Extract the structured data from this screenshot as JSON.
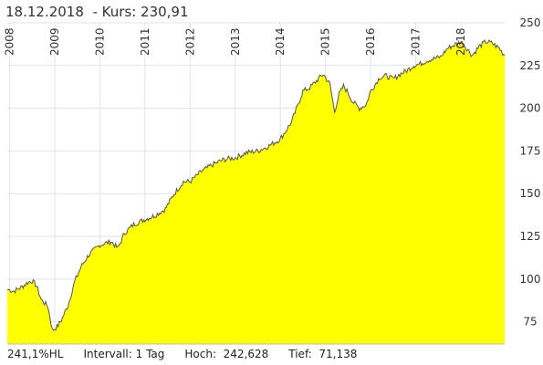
{
  "header": {
    "date": "18.12.2018",
    "price_label": "- Kurs:",
    "price": "230,91"
  },
  "footer": {
    "performance": "241,1%HL",
    "interval": "Intervall: 1 Tag",
    "high": "Hoch:  242,628",
    "low": "Tief:  71,138"
  },
  "chart_data": {
    "type": "area",
    "title": "",
    "xlabel": "",
    "ylabel": "",
    "x_ticks": [
      "2008",
      "2009",
      "2010",
      "2011",
      "2012",
      "2013",
      "2014",
      "2015",
      "2016",
      "2017",
      "2018"
    ],
    "y_ticks": [
      75,
      100,
      125,
      150,
      175,
      200,
      225,
      250
    ],
    "xlim": [
      2007.95,
      2018.97
    ],
    "ylim": [
      62,
      250
    ],
    "grid": true,
    "fill_color": "#ffff00",
    "line_color": "#555555",
    "series": [
      {
        "x": [
          2007.95,
          2008.1,
          2008.25,
          2008.4,
          2008.5,
          2008.6,
          2008.7,
          2008.85,
          2008.95,
          2009.05,
          2009.15,
          2009.3,
          2009.45,
          2009.6,
          2009.75,
          2010.0,
          2010.25,
          2010.4,
          2010.55,
          2010.75,
          2011.0,
          2011.2,
          2011.45,
          2011.65,
          2011.85,
          2012.0,
          2012.25,
          2012.5,
          2012.75,
          2013.0,
          2013.25,
          2013.5,
          2013.75,
          2014.0,
          2014.25,
          2014.5,
          2014.65,
          2014.8,
          2014.95,
          2015.1,
          2015.2,
          2015.3,
          2015.4,
          2015.5,
          2015.6,
          2015.75,
          2015.9,
          2016.0,
          2016.1,
          2016.2,
          2016.35,
          2016.5,
          2016.65,
          2016.8,
          2016.95,
          2017.1,
          2017.25,
          2017.4,
          2017.55,
          2017.7,
          2017.85,
          2018.0,
          2018.1,
          2018.25,
          2018.4,
          2018.55,
          2018.7,
          2018.85,
          2018.97
        ],
        "y": [
          94,
          93,
          95,
          98,
          99,
          96,
          88,
          84,
          70,
          72,
          76,
          85,
          99,
          108,
          114,
          120,
          122,
          118,
          127,
          132,
          135,
          137,
          141,
          150,
          157,
          157,
          163,
          167,
          170,
          171,
          174,
          175,
          178,
          182,
          192,
          210,
          212,
          216,
          220,
          214,
          198,
          208,
          213,
          209,
          204,
          200,
          202,
          210,
          214,
          218,
          219,
          217,
          220,
          222,
          225,
          226,
          228,
          229,
          230,
          235,
          237,
          239,
          236,
          231,
          236,
          239,
          238,
          235,
          230.91
        ]
      }
    ]
  }
}
